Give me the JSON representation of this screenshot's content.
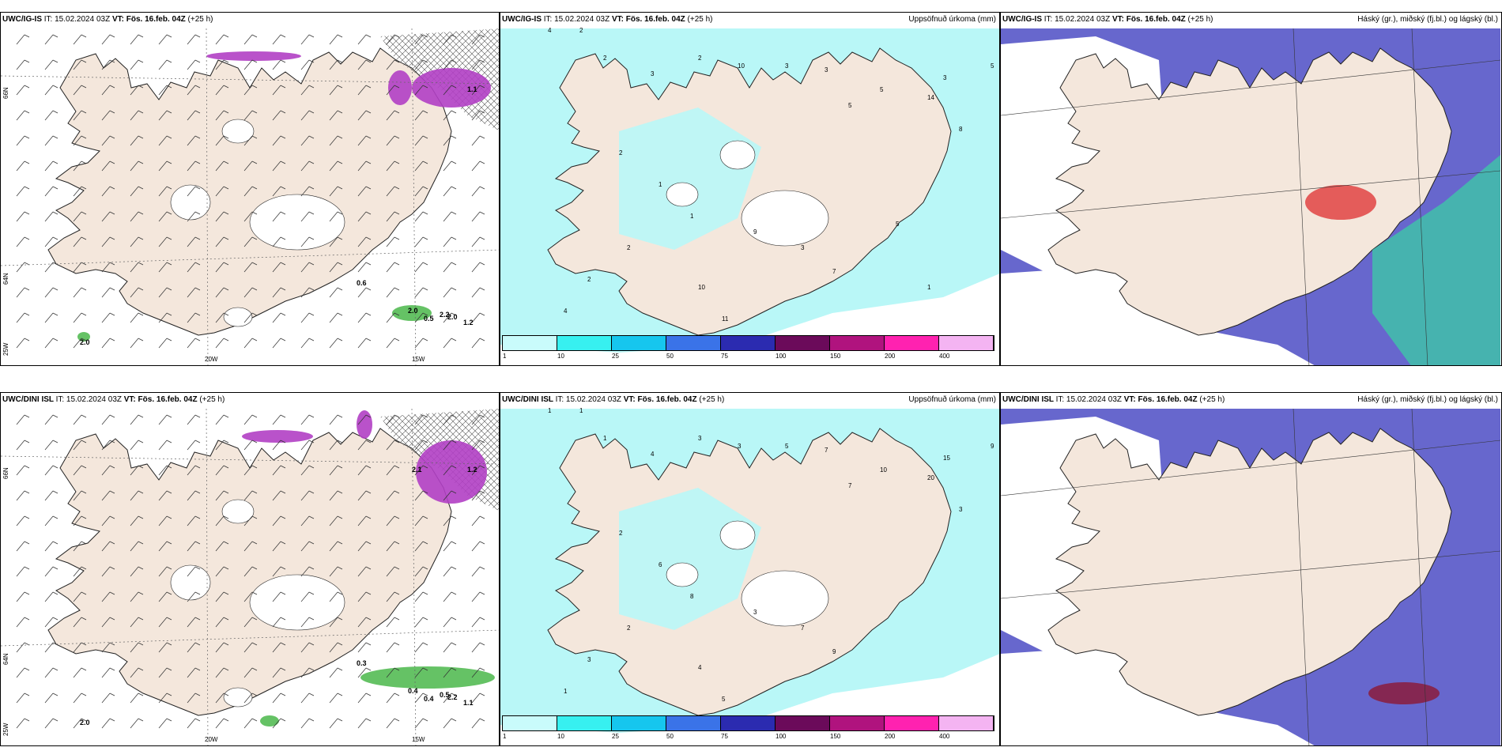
{
  "colors": {
    "land": "#f4e7dc",
    "coast": "#222222",
    "precip_light": "#b9f7f7",
    "precip_mid": "#37e6ee",
    "icing_purple": "#b13fc4",
    "icing_light": "#e8a2ee",
    "cloud_low": "#5656c8",
    "cloud_mid": "#3fc7a8",
    "cloud_high": "#e04343",
    "snow_green": "#3fb33f"
  },
  "panels": [
    {
      "title_prefix": "UWC/IG-IS",
      "run": "IT: 15.02.2024 03Z",
      "valid": "VT: Fös. 16.feb. 04Z",
      "lead": "(+25 h)",
      "right_label": "",
      "kind": "icing",
      "lon_labels": [
        "20W",
        "15W"
      ],
      "lat_labels": [
        "66N",
        "64N",
        "25W"
      ],
      "values": [
        "0.6",
        "2.0",
        "2.2",
        "0.5",
        "2.0",
        "1.2",
        "2.0",
        "1.1"
      ]
    },
    {
      "title_prefix": "UWC/IG-IS",
      "run": "IT: 15.02.2024 03Z",
      "valid": "VT: Fös. 16.feb. 04Z",
      "lead": "(+25 h)",
      "right_label": "Uppsöfnuð úrkoma (mm)",
      "kind": "precip",
      "colorbar": [
        "1",
        "10",
        "25",
        "50",
        "75",
        "100",
        "150",
        "200",
        "400"
      ],
      "values": [
        "4",
        "2",
        "2",
        "3",
        "2",
        "10",
        "3",
        "3",
        "5",
        "5",
        "14",
        "3",
        "8",
        "5",
        "2",
        "1",
        "1",
        "2",
        "2",
        "4",
        "10",
        "11",
        "9",
        "3",
        "7",
        "5",
        "1"
      ]
    },
    {
      "title_prefix": "UWC/IG-IS",
      "run": "IT: 15.02.2024 03Z",
      "valid": "VT: Fös. 16.feb. 04Z",
      "lead": "(+25 h)",
      "right_label": "Háský (gr.), miðský (fj.bl.) og lágský (bl.)",
      "kind": "cloud"
    },
    {
      "title_prefix": "UWC/DINI ISL",
      "run": "IT: 15.02.2024 03Z",
      "valid": "VT: Fös. 16.feb. 04Z",
      "lead": "(+25 h)",
      "right_label": "",
      "kind": "icing",
      "lon_labels": [
        "20W",
        "15W"
      ],
      "lat_labels": [
        "66N",
        "64N",
        "25W"
      ],
      "values": [
        "0.3",
        "0.4",
        "0.5",
        "0.4",
        "2.2",
        "1.1",
        "2.0",
        "1.2",
        "2.1"
      ]
    },
    {
      "title_prefix": "UWC/DINI ISL",
      "run": "IT: 15.02.2024 03Z",
      "valid": "VT: Fös. 16.feb. 04Z",
      "lead": "(+25 h)",
      "right_label": "Uppsöfnuð úrkoma (mm)",
      "kind": "precip",
      "colorbar": [
        "1",
        "10",
        "25",
        "50",
        "75",
        "100",
        "150",
        "200",
        "400"
      ],
      "values": [
        "1",
        "1",
        "1",
        "4",
        "3",
        "3",
        "5",
        "7",
        "7",
        "10",
        "20",
        "15",
        "3",
        "9",
        "2",
        "6",
        "8",
        "2",
        "3",
        "1",
        "4",
        "5",
        "3",
        "7",
        "9"
      ]
    },
    {
      "title_prefix": "UWC/DINI ISL",
      "run": "IT: 15.02.2024 03Z",
      "valid": "VT: Fös. 16.feb. 04Z",
      "lead": "(+25 h)",
      "right_label": "Háský (gr.), miðský (fj.bl.) og lágský (bl.)",
      "kind": "cloud"
    }
  ]
}
